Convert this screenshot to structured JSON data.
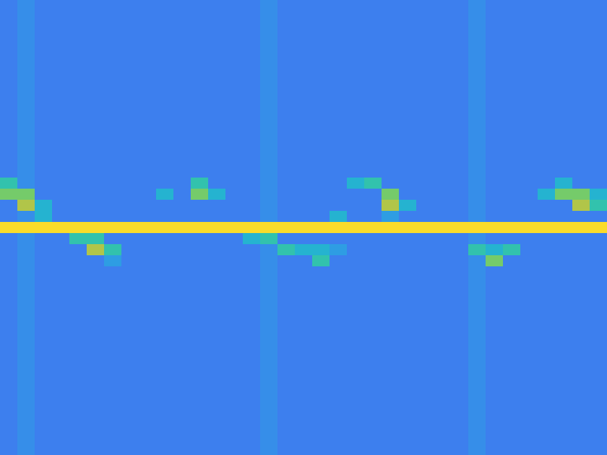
{
  "chart_data": {
    "type": "heatmap",
    "tick_labels": false,
    "clim": [
      0,
      10
    ],
    "cells": [
      [
        3,
        3.5,
        3,
        3,
        3,
        3,
        3,
        3,
        3,
        3,
        3,
        3,
        3,
        3,
        3,
        3.5,
        3,
        3,
        3,
        3,
        3,
        3,
        3,
        3,
        3,
        3,
        3,
        3.5,
        3,
        3,
        3,
        3,
        3,
        3,
        3
      ],
      [
        3,
        3.5,
        3,
        3,
        3,
        3,
        3,
        3,
        3,
        3,
        3,
        3,
        3,
        3,
        3,
        3.5,
        3,
        3,
        3,
        3,
        3,
        3,
        3,
        3,
        3,
        3,
        3,
        3.5,
        3,
        3,
        3,
        3,
        3,
        3,
        3
      ],
      [
        3,
        3.5,
        3,
        3,
        3,
        3,
        3,
        3,
        3,
        3,
        3,
        3,
        3,
        3,
        3,
        3.5,
        3,
        3,
        3,
        3,
        3,
        3,
        3,
        3,
        3,
        3,
        3,
        3.5,
        3,
        3,
        3,
        3,
        3,
        3,
        3
      ],
      [
        3,
        3.5,
        3,
        3,
        3,
        3,
        3,
        3,
        3,
        3,
        3,
        3,
        3,
        3,
        3,
        3.5,
        3,
        3,
        3,
        3,
        3,
        3,
        3,
        3,
        3,
        3,
        3,
        3.5,
        3,
        3,
        3,
        3,
        3,
        3,
        3
      ],
      [
        3,
        3.5,
        3,
        3,
        3,
        3,
        3,
        3,
        3,
        3,
        3,
        3,
        3,
        3,
        3,
        3.5,
        3,
        3,
        3,
        3,
        3,
        3,
        3,
        3,
        3,
        3,
        3,
        3.5,
        3,
        3,
        3,
        3,
        3,
        3,
        3
      ],
      [
        3,
        3.5,
        3,
        3,
        3,
        3,
        3,
        3,
        3,
        3,
        3,
        3,
        3,
        3,
        3,
        3.5,
        3,
        3,
        3,
        3,
        3,
        3,
        3,
        3,
        3,
        3,
        3,
        3.5,
        3,
        3,
        3,
        3,
        3,
        3,
        3
      ],
      [
        3,
        3.5,
        3,
        3,
        3,
        3,
        3,
        3,
        3,
        3,
        3,
        3,
        3,
        3,
        3,
        3.5,
        3,
        3,
        3,
        3,
        3,
        3,
        3,
        3,
        3,
        3,
        3,
        3.5,
        3,
        3,
        3,
        3,
        3,
        3,
        3
      ],
      [
        3,
        3.5,
        3,
        3,
        3,
        3,
        3,
        3,
        3,
        3,
        3,
        3,
        3,
        3,
        3,
        3.5,
        3,
        3,
        3,
        3,
        3,
        3,
        3,
        3,
        3,
        3,
        3,
        3.5,
        3,
        3,
        3,
        3,
        3,
        3,
        3
      ],
      [
        3,
        3.5,
        3,
        3,
        3,
        3,
        3,
        3,
        3,
        3,
        3,
        3,
        3,
        3,
        3,
        3.5,
        3,
        3,
        3,
        3,
        3,
        3,
        3,
        3,
        3,
        3,
        3,
        3.5,
        3,
        3,
        3,
        3,
        3,
        3,
        3
      ],
      [
        3,
        3.5,
        3,
        3,
        3,
        3,
        3,
        3,
        3,
        3,
        3,
        3,
        3,
        3,
        3,
        3.5,
        3,
        3,
        3,
        3,
        3,
        3,
        3,
        3,
        3,
        3,
        3,
        3.5,
        3,
        3,
        3,
        3,
        3,
        3,
        3
      ],
      [
        3,
        3.5,
        3,
        3,
        3,
        3,
        3,
        3,
        3,
        3,
        3,
        3,
        3,
        3,
        3,
        3.5,
        3,
        3,
        3,
        3,
        3,
        3,
        3,
        3,
        3,
        3,
        3,
        3.5,
        3,
        3,
        3,
        3,
        3,
        3,
        3
      ],
      [
        3,
        3.5,
        3,
        3,
        3,
        3,
        3,
        3,
        3,
        3,
        3,
        3,
        3,
        3,
        3,
        3.5,
        3,
        3,
        3,
        3,
        3,
        3,
        3,
        3,
        3,
        3,
        3,
        3.5,
        3,
        3,
        3,
        3,
        3,
        3,
        3
      ],
      [
        3,
        3.5,
        3,
        3,
        3,
        3,
        3,
        3,
        3,
        3,
        3,
        3,
        3,
        3,
        3,
        3.5,
        3,
        3,
        3,
        3,
        3,
        3,
        3,
        3,
        3,
        3,
        3,
        3.5,
        3,
        3,
        3,
        3,
        3,
        3,
        3
      ],
      [
        3,
        3.5,
        3,
        3,
        3,
        3,
        3,
        3,
        3,
        3,
        3,
        3,
        3,
        3,
        3,
        3.5,
        3,
        3,
        3,
        3,
        3,
        3,
        3,
        3,
        3,
        3,
        3,
        3.5,
        3,
        3,
        3,
        3,
        3,
        3,
        3
      ],
      [
        3,
        3.5,
        3,
        3,
        3,
        3,
        3,
        3,
        3,
        3,
        3,
        3,
        3,
        3,
        3,
        3.5,
        3,
        3,
        3,
        3,
        3,
        3,
        3,
        3,
        3,
        3,
        3,
        3.5,
        3,
        3,
        3,
        3,
        3,
        3,
        3
      ],
      [
        3,
        3.5,
        3,
        3,
        3,
        3,
        3,
        3,
        3,
        3,
        3,
        3,
        3,
        3,
        3,
        3.5,
        3,
        3,
        3,
        3,
        3,
        3,
        3,
        3,
        3,
        3,
        3,
        3.5,
        3,
        3,
        3,
        3,
        3,
        3,
        3
      ],
      [
        6,
        3.5,
        3,
        3,
        3,
        3,
        3,
        3,
        3,
        3,
        3,
        6,
        3,
        3,
        3,
        3.5,
        3,
        3,
        3,
        3,
        5,
        6,
        3,
        3,
        3,
        3,
        3,
        3.5,
        3,
        3,
        3,
        3,
        5,
        3,
        3
      ],
      [
        7,
        7,
        3,
        3,
        3,
        3,
        3,
        3,
        3,
        5,
        3,
        7,
        5,
        3,
        3,
        3.5,
        3,
        3,
        3,
        3,
        3,
        3,
        7,
        3,
        3,
        3,
        3,
        3.5,
        3,
        3,
        3,
        5,
        7,
        7,
        5
      ],
      [
        3,
        8,
        5,
        3,
        3,
        3,
        3,
        3,
        3,
        3,
        3,
        3,
        3,
        3,
        3,
        3.5,
        3,
        3,
        3,
        3,
        3,
        3,
        8,
        5,
        3,
        3,
        3,
        3.5,
        3,
        3,
        3,
        3,
        3,
        8,
        6
      ],
      [
        3,
        3.5,
        5,
        3,
        3,
        3,
        3,
        3,
        3,
        3,
        3,
        3,
        3,
        3,
        3,
        3.5,
        3,
        3,
        3,
        5,
        3,
        3,
        4,
        3,
        3,
        3,
        3,
        3.5,
        3,
        3,
        3,
        3,
        3,
        3,
        3
      ],
      [
        10,
        10,
        10,
        10,
        10,
        10,
        10,
        10,
        10,
        10,
        10,
        10,
        10,
        10,
        10,
        10,
        10,
        10,
        10,
        10,
        10,
        10,
        10,
        10,
        10,
        10,
        10,
        10,
        10,
        10,
        10,
        10,
        10,
        10,
        10
      ],
      [
        3,
        3.5,
        3,
        3,
        6,
        6,
        3,
        3,
        3,
        3,
        3,
        3,
        3,
        3,
        5,
        6,
        3,
        3,
        3,
        3,
        3,
        3,
        3,
        3,
        3,
        3,
        3,
        3.5,
        3,
        3,
        3,
        3,
        3,
        3,
        3
      ],
      [
        3,
        3.5,
        3,
        3,
        3,
        8,
        6,
        3,
        3,
        3,
        3,
        3,
        3,
        3,
        3,
        3.5,
        6,
        5,
        5,
        4,
        3,
        3,
        3,
        3,
        3,
        3,
        3,
        6,
        5,
        6,
        3,
        3,
        3,
        3,
        3
      ],
      [
        3,
        3.5,
        3,
        3,
        3,
        3,
        4,
        3,
        3,
        3,
        3,
        3,
        3,
        3,
        3,
        3.5,
        3,
        3,
        6,
        3,
        3,
        3,
        3,
        3,
        3,
        3,
        3,
        3.5,
        7,
        3,
        3,
        3,
        3,
        3,
        3
      ],
      [
        3,
        3.5,
        3,
        3,
        3,
        3,
        3,
        3,
        3,
        3,
        3,
        3,
        3,
        3,
        3,
        3.5,
        3,
        3,
        3,
        3,
        3,
        3,
        3,
        3,
        3,
        3,
        3,
        3.5,
        3,
        3,
        3,
        3,
        3,
        3,
        3
      ],
      [
        3,
        3.5,
        3,
        3,
        3,
        3,
        3,
        3,
        3,
        3,
        3,
        3,
        3,
        3,
        3,
        3.5,
        3,
        3,
        3,
        3,
        3,
        3,
        3,
        3,
        3,
        3,
        3,
        3.5,
        3,
        3,
        3,
        3,
        3,
        3,
        3
      ],
      [
        3,
        3.5,
        3,
        3,
        3,
        3,
        3,
        3,
        3,
        3,
        3,
        3,
        3,
        3,
        3,
        3.5,
        3,
        3,
        3,
        3,
        3,
        3,
        3,
        3,
        3,
        3,
        3,
        3.5,
        3,
        3,
        3,
        3,
        3,
        3,
        3
      ],
      [
        3,
        3.5,
        3,
        3,
        3,
        3,
        3,
        3,
        3,
        3,
        3,
        3,
        3,
        3,
        3,
        3.5,
        3,
        3,
        3,
        3,
        3,
        3,
        3,
        3,
        3,
        3,
        3,
        3.5,
        3,
        3,
        3,
        3,
        3,
        3,
        3
      ],
      [
        3,
        3.5,
        3,
        3,
        3,
        3,
        3,
        3,
        3,
        3,
        3,
        3,
        3,
        3,
        3,
        3.5,
        3,
        3,
        3,
        3,
        3,
        3,
        3,
        3,
        3,
        3,
        3,
        3.5,
        3,
        3,
        3,
        3,
        3,
        3,
        3
      ],
      [
        3,
        3.5,
        3,
        3,
        3,
        3,
        3,
        3,
        3,
        3,
        3,
        3,
        3,
        3,
        3,
        3.5,
        3,
        3,
        3,
        3,
        3,
        3,
        3,
        3,
        3,
        3,
        3,
        3.5,
        3,
        3,
        3,
        3,
        3,
        3,
        3
      ],
      [
        3,
        3.5,
        3,
        3,
        3,
        3,
        3,
        3,
        3,
        3,
        3,
        3,
        3,
        3,
        3,
        3.5,
        3,
        3,
        3,
        3,
        3,
        3,
        3,
        3,
        3,
        3,
        3,
        3.5,
        3,
        3,
        3,
        3,
        3,
        3,
        3
      ],
      [
        3,
        3.5,
        3,
        3,
        3,
        3,
        3,
        3,
        3,
        3,
        3,
        3,
        3,
        3,
        3,
        3.5,
        3,
        3,
        3,
        3,
        3,
        3,
        3,
        3,
        3,
        3,
        3,
        3.5,
        3,
        3,
        3,
        3,
        3,
        3,
        3
      ],
      [
        3,
        3.5,
        3,
        3,
        3,
        3,
        3,
        3,
        3,
        3,
        3,
        3,
        3,
        3,
        3,
        3.5,
        3,
        3,
        3,
        3,
        3,
        3,
        3,
        3,
        3,
        3,
        3,
        3.5,
        3,
        3,
        3,
        3,
        3,
        3,
        3
      ],
      [
        3,
        3.5,
        3,
        3,
        3,
        3,
        3,
        3,
        3,
        3,
        3,
        3,
        3,
        3,
        3,
        3.5,
        3,
        3,
        3,
        3,
        3,
        3,
        3,
        3,
        3,
        3,
        3,
        3.5,
        3,
        3,
        3,
        3,
        3,
        3,
        3
      ],
      [
        3,
        3.5,
        3,
        3,
        3,
        3,
        3,
        3,
        3,
        3,
        3,
        3,
        3,
        3,
        3,
        3.5,
        3,
        3,
        3,
        3,
        3,
        3,
        3,
        3,
        3,
        3,
        3,
        3.5,
        3,
        3,
        3,
        3,
        3,
        3,
        3
      ],
      [
        3,
        3.5,
        3,
        3,
        3,
        3,
        3,
        3,
        3,
        3,
        3,
        3,
        3,
        3,
        3,
        3.5,
        3,
        3,
        3,
        3,
        3,
        3,
        3,
        3,
        3,
        3,
        3,
        3.5,
        3,
        3,
        3,
        3,
        3,
        3,
        3
      ],
      [
        3,
        3.5,
        3,
        3,
        3,
        3,
        3,
        3,
        3,
        3,
        3,
        3,
        3,
        3,
        3,
        3.5,
        3,
        3,
        3,
        3,
        3,
        3,
        3,
        3,
        3,
        3,
        3,
        3.5,
        3,
        3,
        3,
        3,
        3,
        3,
        3
      ],
      [
        3,
        3.5,
        3,
        3,
        3,
        3,
        3,
        3,
        3,
        3,
        3,
        3,
        3,
        3,
        3,
        3.5,
        3,
        3,
        3,
        3,
        3,
        3,
        3,
        3,
        3,
        3,
        3,
        3.5,
        3,
        3,
        3,
        3,
        3,
        3,
        3
      ],
      [
        3,
        3.5,
        3,
        3,
        3,
        3,
        3,
        3,
        3,
        3,
        3,
        3,
        3,
        3,
        3,
        3.5,
        3,
        3,
        3,
        3,
        3,
        3,
        3,
        3,
        3,
        3,
        3,
        3.5,
        3,
        3,
        3,
        3,
        3,
        3,
        3
      ],
      [
        3,
        3.5,
        3,
        3,
        3,
        3,
        3,
        3,
        3,
        3,
        3,
        3,
        3,
        3,
        3,
        3.5,
        3,
        3,
        3,
        3,
        3,
        3,
        3,
        3,
        3,
        3,
        3,
        3.5,
        3,
        3,
        3,
        3,
        3,
        3,
        3
      ],
      [
        3,
        3.5,
        3,
        3,
        3,
        3,
        3,
        3,
        3,
        3,
        3,
        3,
        3,
        3,
        3,
        3.5,
        3,
        3,
        3,
        3,
        3,
        3,
        3,
        3,
        3,
        3,
        3,
        3.5,
        3,
        3,
        3,
        3,
        3,
        3,
        3
      ]
    ]
  }
}
